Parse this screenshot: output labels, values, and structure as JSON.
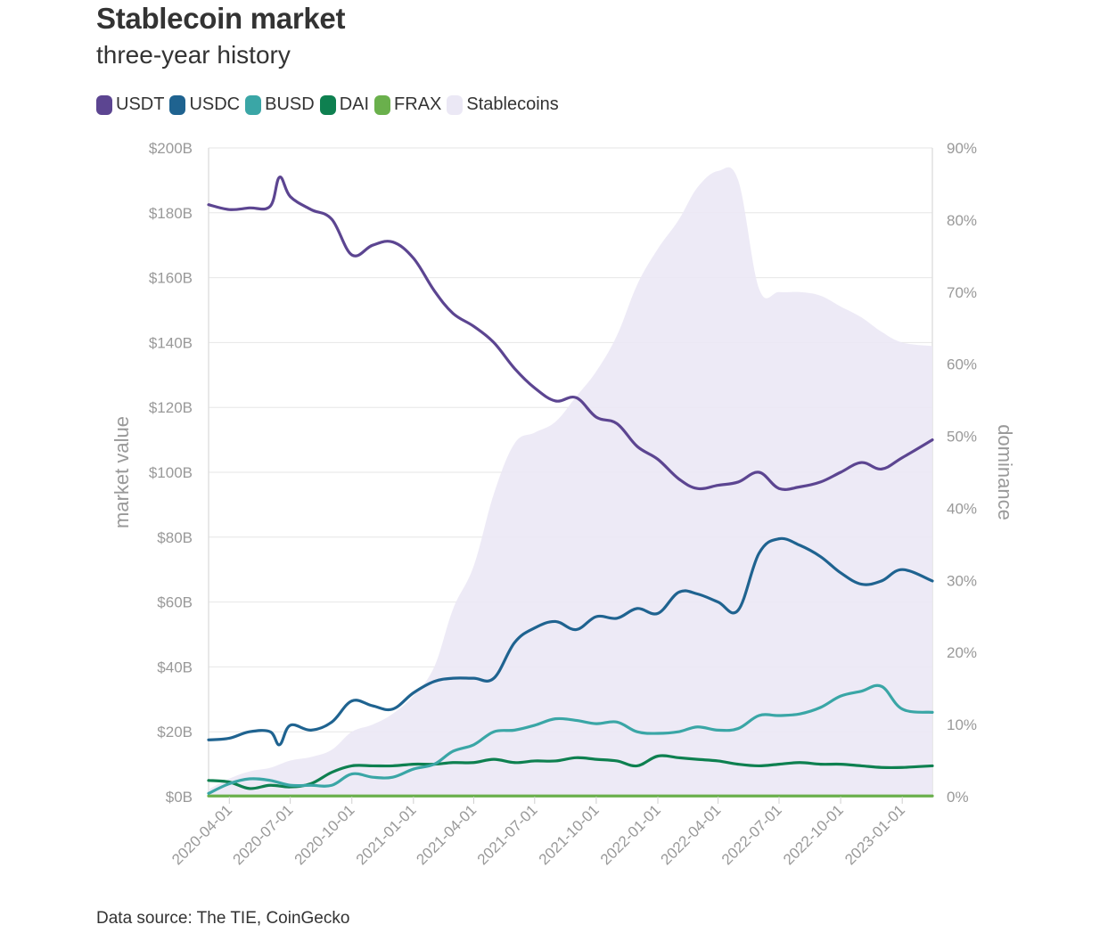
{
  "header": {
    "title": "Stablecoin market",
    "subtitle": "three-year history"
  },
  "source": "Data source: The TIE, CoinGecko",
  "colors": {
    "USDT": "#5c4591",
    "USDC": "#1f6390",
    "BUSD": "#3aa6a6",
    "DAI": "#0e8050",
    "FRAX": "#6ab04c",
    "Stablecoins": "#ebe8f5"
  },
  "chart_data": {
    "type": "line",
    "title": "Stablecoin market",
    "subtitle": "three-year history",
    "ylabel": "market value",
    "y2label": "dominance",
    "ylim": [
      0,
      200
    ],
    "y2lim": [
      0,
      90
    ],
    "grid": true,
    "legend_placement": "top-left",
    "x_ticks": [
      "2020-04-01",
      "2020-07-01",
      "2020-10-01",
      "2021-01-01",
      "2021-04-01",
      "2021-07-01",
      "2021-10-01",
      "2022-01-01",
      "2022-04-01",
      "2022-07-01",
      "2022-10-01",
      "2023-01-01"
    ],
    "x_range": [
      "2020-03-01",
      "2023-02-15"
    ],
    "y_ticks": [
      "$0B",
      "$20B",
      "$40B",
      "$60B",
      "$80B",
      "$100B",
      "$120B",
      "$140B",
      "$160B",
      "$180B",
      "$200B"
    ],
    "y2_ticks": [
      "0%",
      "10%",
      "20%",
      "30%",
      "40%",
      "50%",
      "60%",
      "70%",
      "80%",
      "90%"
    ],
    "series": [
      {
        "name": "Stablecoins",
        "axis": "right",
        "kind": "area",
        "x": [
          "2020-03-01",
          "2020-04-01",
          "2020-05-01",
          "2020-06-01",
          "2020-07-01",
          "2020-08-01",
          "2020-09-01",
          "2020-10-01",
          "2020-11-01",
          "2020-12-01",
          "2021-01-01",
          "2021-02-01",
          "2021-03-01",
          "2021-04-01",
          "2021-05-01",
          "2021-06-01",
          "2021-07-01",
          "2021-08-01",
          "2021-09-01",
          "2021-10-01",
          "2021-11-01",
          "2021-12-01",
          "2022-01-01",
          "2022-02-01",
          "2022-03-01",
          "2022-04-01",
          "2022-05-01",
          "2022-06-01",
          "2022-07-01",
          "2022-08-01",
          "2022-09-01",
          "2022-10-01",
          "2022-11-01",
          "2022-12-01",
          "2023-01-01",
          "2023-02-15"
        ],
        "values": [
          1.0,
          2.5,
          3.5,
          4.0,
          5.0,
          5.5,
          6.5,
          9.0,
          10.0,
          11.5,
          14.0,
          18.0,
          26.0,
          32.0,
          42.0,
          49.0,
          50.5,
          52.0,
          55.5,
          59.0,
          64.0,
          71.0,
          76.0,
          80.0,
          84.5,
          86.8,
          85.5,
          70.5,
          70.0,
          70.0,
          69.5,
          68.0,
          66.5,
          64.5,
          63.0,
          62.5
        ]
      },
      {
        "name": "USDT",
        "axis": "left",
        "x": [
          "2020-03-01",
          "2020-04-01",
          "2020-05-01",
          "2020-06-01",
          "2020-06-15",
          "2020-07-01",
          "2020-08-01",
          "2020-09-01",
          "2020-10-01",
          "2020-11-01",
          "2020-12-01",
          "2021-01-01",
          "2021-02-01",
          "2021-03-01",
          "2021-04-01",
          "2021-05-01",
          "2021-06-01",
          "2021-07-01",
          "2021-08-01",
          "2021-09-01",
          "2021-10-01",
          "2021-11-01",
          "2021-12-01",
          "2022-01-01",
          "2022-02-01",
          "2022-03-01",
          "2022-04-01",
          "2022-05-01",
          "2022-06-01",
          "2022-07-01",
          "2022-08-01",
          "2022-09-01",
          "2022-10-01",
          "2022-11-01",
          "2022-12-01",
          "2023-01-01",
          "2023-02-15"
        ],
        "values": [
          182.5,
          181,
          181.5,
          182,
          191,
          185,
          181,
          178,
          167,
          170,
          171,
          166,
          156,
          149,
          145,
          140,
          132,
          126,
          122,
          123,
          117,
          115,
          108,
          104,
          98,
          95,
          96,
          97,
          100,
          95,
          95.5,
          97,
          100,
          103,
          101,
          104.5,
          110
        ]
      },
      {
        "name": "USDC",
        "axis": "left",
        "x": [
          "2020-03-01",
          "2020-04-01",
          "2020-05-01",
          "2020-06-01",
          "2020-06-15",
          "2020-07-01",
          "2020-08-01",
          "2020-09-01",
          "2020-10-01",
          "2020-11-01",
          "2020-12-01",
          "2021-01-01",
          "2021-02-01",
          "2021-03-01",
          "2021-04-01",
          "2021-05-01",
          "2021-06-01",
          "2021-07-01",
          "2021-08-01",
          "2021-09-01",
          "2021-10-01",
          "2021-11-01",
          "2021-12-01",
          "2022-01-01",
          "2022-02-01",
          "2022-03-01",
          "2022-04-01",
          "2022-05-01",
          "2022-06-01",
          "2022-07-01",
          "2022-08-01",
          "2022-09-01",
          "2022-10-01",
          "2022-11-01",
          "2022-12-01",
          "2023-01-01",
          "2023-02-15"
        ],
        "values": [
          17.5,
          18,
          20,
          20,
          16,
          22,
          20.5,
          23,
          29.5,
          28,
          27,
          32,
          35.5,
          36.5,
          36.5,
          36.5,
          47.5,
          52,
          54,
          51.5,
          55.5,
          55,
          58,
          56.5,
          63,
          62.5,
          60,
          57.5,
          75,
          79.5,
          77.5,
          74,
          69,
          65.5,
          66.5,
          70,
          66.5
        ]
      },
      {
        "name": "BUSD",
        "axis": "left",
        "x": [
          "2020-03-01",
          "2020-04-01",
          "2020-05-01",
          "2020-06-01",
          "2020-07-01",
          "2020-08-01",
          "2020-09-01",
          "2020-10-01",
          "2020-11-01",
          "2020-12-01",
          "2021-01-01",
          "2021-02-01",
          "2021-03-01",
          "2021-04-01",
          "2021-05-01",
          "2021-06-01",
          "2021-07-01",
          "2021-08-01",
          "2021-09-01",
          "2021-10-01",
          "2021-11-01",
          "2021-12-01",
          "2022-01-01",
          "2022-02-01",
          "2022-03-01",
          "2022-04-01",
          "2022-05-01",
          "2022-06-01",
          "2022-07-01",
          "2022-08-01",
          "2022-09-01",
          "2022-10-01",
          "2022-11-01",
          "2022-12-01",
          "2023-01-01",
          "2023-02-15"
        ],
        "values": [
          1,
          4,
          5.5,
          5,
          3.5,
          3.5,
          3.5,
          7,
          6,
          6,
          8.5,
          10,
          14,
          16,
          20,
          20.5,
          22,
          24,
          23.5,
          22.5,
          23,
          20,
          19.5,
          20,
          21.5,
          20.5,
          21,
          25,
          25,
          25.5,
          27.5,
          31,
          32.5,
          34,
          27,
          26
        ]
      },
      {
        "name": "DAI",
        "axis": "left",
        "x": [
          "2020-03-01",
          "2020-04-01",
          "2020-05-01",
          "2020-06-01",
          "2020-07-01",
          "2020-08-01",
          "2020-09-01",
          "2020-10-01",
          "2020-11-01",
          "2020-12-01",
          "2021-01-01",
          "2021-02-01",
          "2021-03-01",
          "2021-04-01",
          "2021-05-01",
          "2021-06-01",
          "2021-07-01",
          "2021-08-01",
          "2021-09-01",
          "2021-10-01",
          "2021-11-01",
          "2021-12-01",
          "2022-01-01",
          "2022-02-01",
          "2022-03-01",
          "2022-04-01",
          "2022-05-01",
          "2022-06-01",
          "2022-07-01",
          "2022-08-01",
          "2022-09-01",
          "2022-10-01",
          "2022-11-01",
          "2022-12-01",
          "2023-01-01",
          "2023-02-15"
        ],
        "values": [
          5,
          4.5,
          2.5,
          3.5,
          3,
          4,
          7.5,
          9.5,
          9.5,
          9.5,
          10,
          10,
          10.5,
          10.5,
          11.5,
          10.5,
          11,
          11,
          12,
          11.5,
          11,
          9.5,
          12.5,
          12,
          11.5,
          11,
          10,
          9.5,
          10,
          10.5,
          10,
          10,
          9.5,
          9,
          9,
          9.5
        ]
      },
      {
        "name": "FRAX",
        "axis": "left",
        "x": [
          "2020-03-01",
          "2023-02-15"
        ],
        "values": [
          0.2,
          0.2
        ]
      }
    ]
  }
}
